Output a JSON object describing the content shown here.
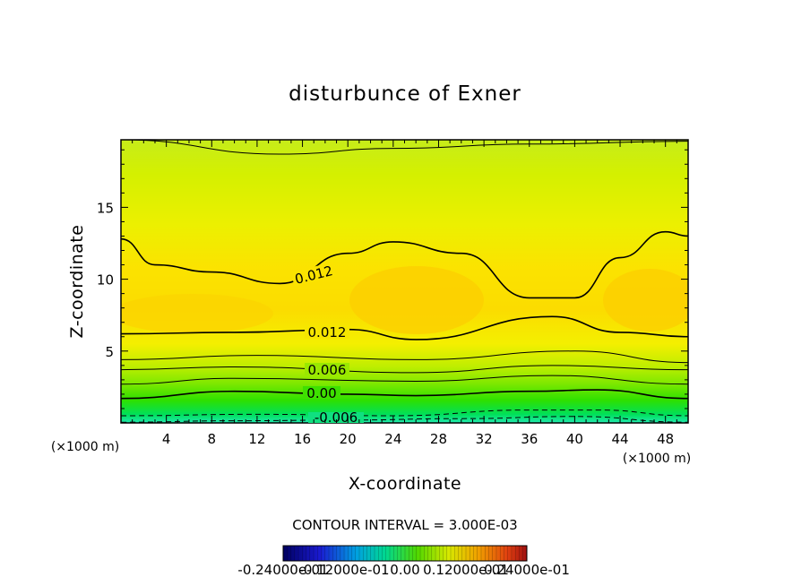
{
  "chart_data": {
    "type": "heatmap",
    "title": "disturbunce of Exner",
    "xlabel": "X-coordinate",
    "ylabel": "Z-coordinate",
    "x_unit": "(×1000 m)",
    "y_unit": "(×1000 m)",
    "xlim": [
      0,
      50
    ],
    "ylim": [
      0,
      19.7
    ],
    "x_ticks": [
      "4",
      "8",
      "12",
      "16",
      "20",
      "24",
      "28",
      "32",
      "36",
      "40",
      "44",
      "48"
    ],
    "y_ticks": [
      "5",
      "10",
      "15"
    ],
    "contour_interval_text": "CONTOUR INTERVAL = 3.000E-03",
    "contour_labels": [
      "0.012",
      "0.012",
      "0.006",
      "0.00",
      "-0.006"
    ],
    "colorbar_labels": [
      "-0.24000e-01",
      "-0.12000e-01",
      "0.00",
      "0.12000e-01",
      "0.24000e-01"
    ],
    "colorbar_range": [
      -0.024,
      0.024
    ],
    "contour_lines": [
      {
        "level": -0.006,
        "style": "dashed",
        "z_at_x": [
          [
            0,
            0.05
          ],
          [
            10,
            0.15
          ],
          [
            20,
            0.2
          ],
          [
            30,
            0.3
          ],
          [
            40,
            0.45
          ],
          [
            50,
            0.05
          ]
        ]
      },
      {
        "level": -0.003,
        "style": "dashed",
        "z_at_x": [
          [
            0,
            0.5
          ],
          [
            12,
            0.6
          ],
          [
            24,
            0.5
          ],
          [
            36,
            0.9
          ],
          [
            42,
            0.9
          ],
          [
            50,
            0.5
          ]
        ]
      },
      {
        "level": 0.0,
        "style": "solid",
        "z_at_x": [
          [
            0,
            1.7
          ],
          [
            10,
            2.2
          ],
          [
            20,
            2.0
          ],
          [
            26,
            1.9
          ],
          [
            36,
            2.2
          ],
          [
            42,
            2.3
          ],
          [
            50,
            1.7
          ]
        ]
      },
      {
        "level": 0.003,
        "style": "solid",
        "z_at_x": [
          [
            0,
            2.7
          ],
          [
            10,
            3.1
          ],
          [
            26,
            2.9
          ],
          [
            38,
            3.3
          ],
          [
            50,
            2.7
          ]
        ]
      },
      {
        "level": 0.006,
        "style": "solid",
        "z_at_x": [
          [
            0,
            3.7
          ],
          [
            10,
            3.9
          ],
          [
            26,
            3.5
          ],
          [
            38,
            4.0
          ],
          [
            50,
            3.7
          ]
        ]
      },
      {
        "level": 0.009,
        "style": "solid",
        "z_at_x": [
          [
            0,
            4.4
          ],
          [
            12,
            4.7
          ],
          [
            26,
            4.4
          ],
          [
            40,
            5.0
          ],
          [
            50,
            4.2
          ]
        ]
      },
      {
        "level": 0.012,
        "style": "solid",
        "z_at_x": [
          [
            0,
            6.2
          ],
          [
            10,
            6.3
          ],
          [
            20,
            6.5
          ],
          [
            26,
            5.8
          ],
          [
            38,
            7.4
          ],
          [
            44,
            6.3
          ],
          [
            50,
            6.0
          ]
        ]
      },
      {
        "level": 0.012,
        "style": "solid",
        "z_at_x": [
          [
            0,
            12.8
          ],
          [
            3,
            11.0
          ],
          [
            8,
            10.5
          ],
          [
            14,
            9.7
          ],
          [
            20,
            11.8
          ],
          [
            24,
            12.6
          ],
          [
            30,
            11.8
          ],
          [
            36,
            8.7
          ],
          [
            40,
            8.7
          ],
          [
            44,
            11.5
          ],
          [
            48,
            13.3
          ],
          [
            50,
            13.0
          ]
        ]
      },
      {
        "level": 0.009,
        "style": "solid",
        "z_at_x": [
          [
            0,
            19.7
          ],
          [
            14,
            18.7
          ],
          [
            24,
            19.1
          ],
          [
            36,
            19.4
          ],
          [
            50,
            19.6
          ]
        ]
      }
    ]
  }
}
